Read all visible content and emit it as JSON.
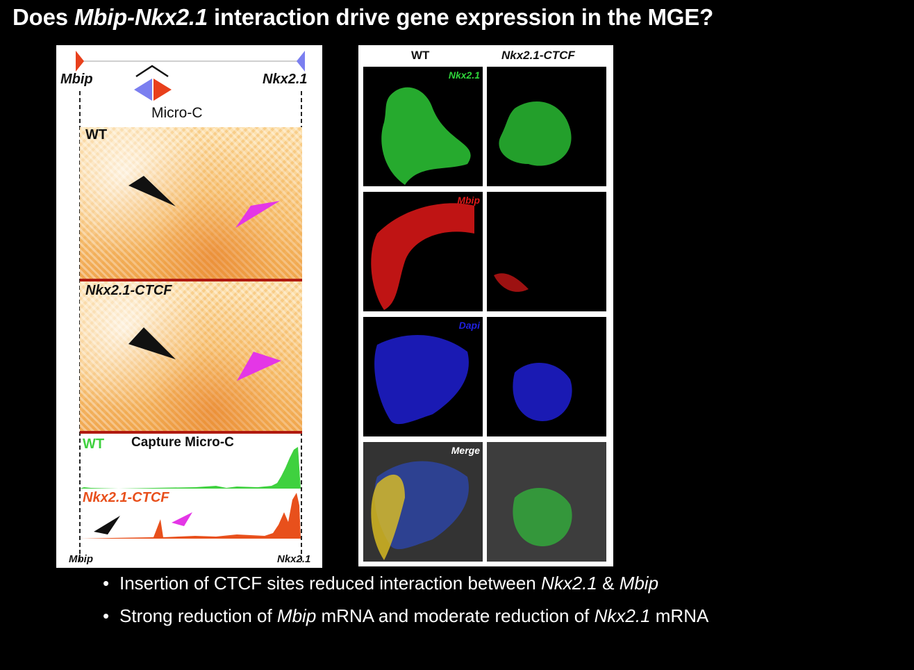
{
  "slide": {
    "title_parts": [
      {
        "text": "Does ",
        "italic": false
      },
      {
        "text": "Mbip-Nkx2.1",
        "italic": true
      },
      {
        "text": " interaction drive gene expression in the MGE?",
        "italic": false
      }
    ]
  },
  "left_panel": {
    "gene_left": "Mbip",
    "gene_right": "Nkx2.1",
    "micro_c_label": "Micro-C",
    "heatmap_top_label": "WT",
    "heatmap_bottom_label": "Nkx2.1-CTCF",
    "capture_wt_label": "WT",
    "capture_title": "Capture Micro-C",
    "capture_mut_label": "Nkx2.1-CTCF",
    "bottom_left": "Mbip",
    "bottom_right": "Nkx2.1",
    "colors": {
      "red_marker": "#e8401c",
      "blue_marker": "#7b7ff0",
      "wt_green": "#3fd13f",
      "mut_orange": "#e8501c",
      "magenta": "#e436e6"
    }
  },
  "right_panel": {
    "col_wt": "WT",
    "col_mut": "Nkx2.1-CTCF",
    "row_labels": [
      "Nkx2.1",
      "Mbip",
      "Dapi",
      "Merge"
    ],
    "colors": {
      "green": "#2fd43a",
      "red": "#e01818",
      "blue": "#2020e0"
    }
  },
  "bullets": [
    {
      "parts": [
        {
          "text": "Insertion of CTCF sites reduced interaction between ",
          "italic": false
        },
        {
          "text": "Nkx2.1",
          "italic": true
        },
        {
          "text": " & ",
          "italic": false
        },
        {
          "text": "Mbip",
          "italic": true
        }
      ]
    },
    {
      "parts": [
        {
          "text": "Strong reduction of ",
          "italic": false
        },
        {
          "text": "Mbip",
          "italic": true
        },
        {
          "text": " mRNA and moderate reduction of ",
          "italic": false
        },
        {
          "text": "Nkx2.1",
          "italic": true
        },
        {
          "text": " mRNA",
          "italic": false
        }
      ]
    }
  ],
  "bullet_symbol": "•"
}
